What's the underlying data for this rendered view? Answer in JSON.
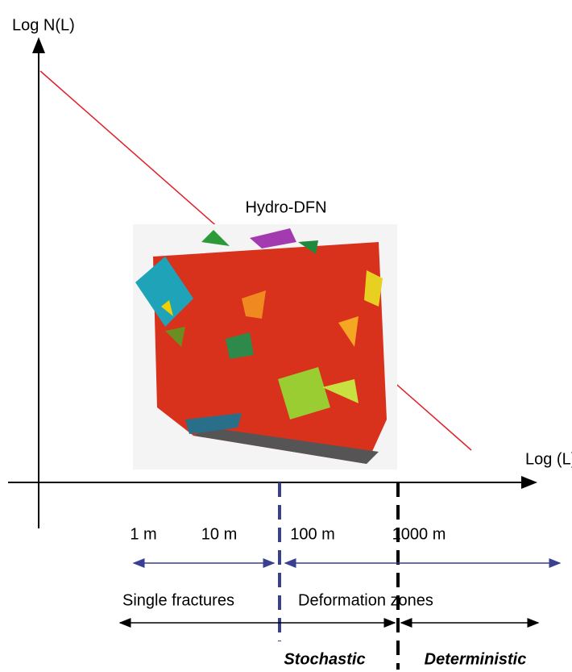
{
  "axes": {
    "y_label": "Log N(L)",
    "x_label": "Log (L)"
  },
  "image": {
    "label": "Hydro-DFN"
  },
  "scale_labels": [
    "1 m",
    "10 m",
    "100 m",
    "1000 m"
  ],
  "regions": [
    "Single fractures",
    "Deformation zones"
  ],
  "methods": [
    "Stochastic",
    "Deterministic"
  ]
}
